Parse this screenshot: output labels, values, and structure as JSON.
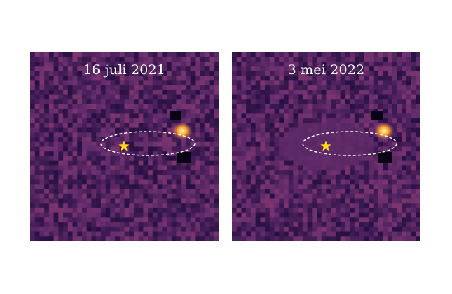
{
  "panels": [
    {
      "date_label": "16 juli 2021",
      "seed": 7,
      "has_mask": false
    },
    {
      "date_label": "3 mei 2022",
      "seed": 19,
      "has_mask": true
    }
  ],
  "colors": {
    "background_low": "#1a0a3a",
    "background_mid": "#6a2f6f",
    "background_high": "#b8496a",
    "planet_core": "#fff6c0",
    "planet_glow": "#f5a623",
    "star_marker": "#ffd81a",
    "orbit_line": "#ffffff"
  },
  "icons": {
    "host_star": "star-icon",
    "orbit": "ellipse-dashed"
  }
}
